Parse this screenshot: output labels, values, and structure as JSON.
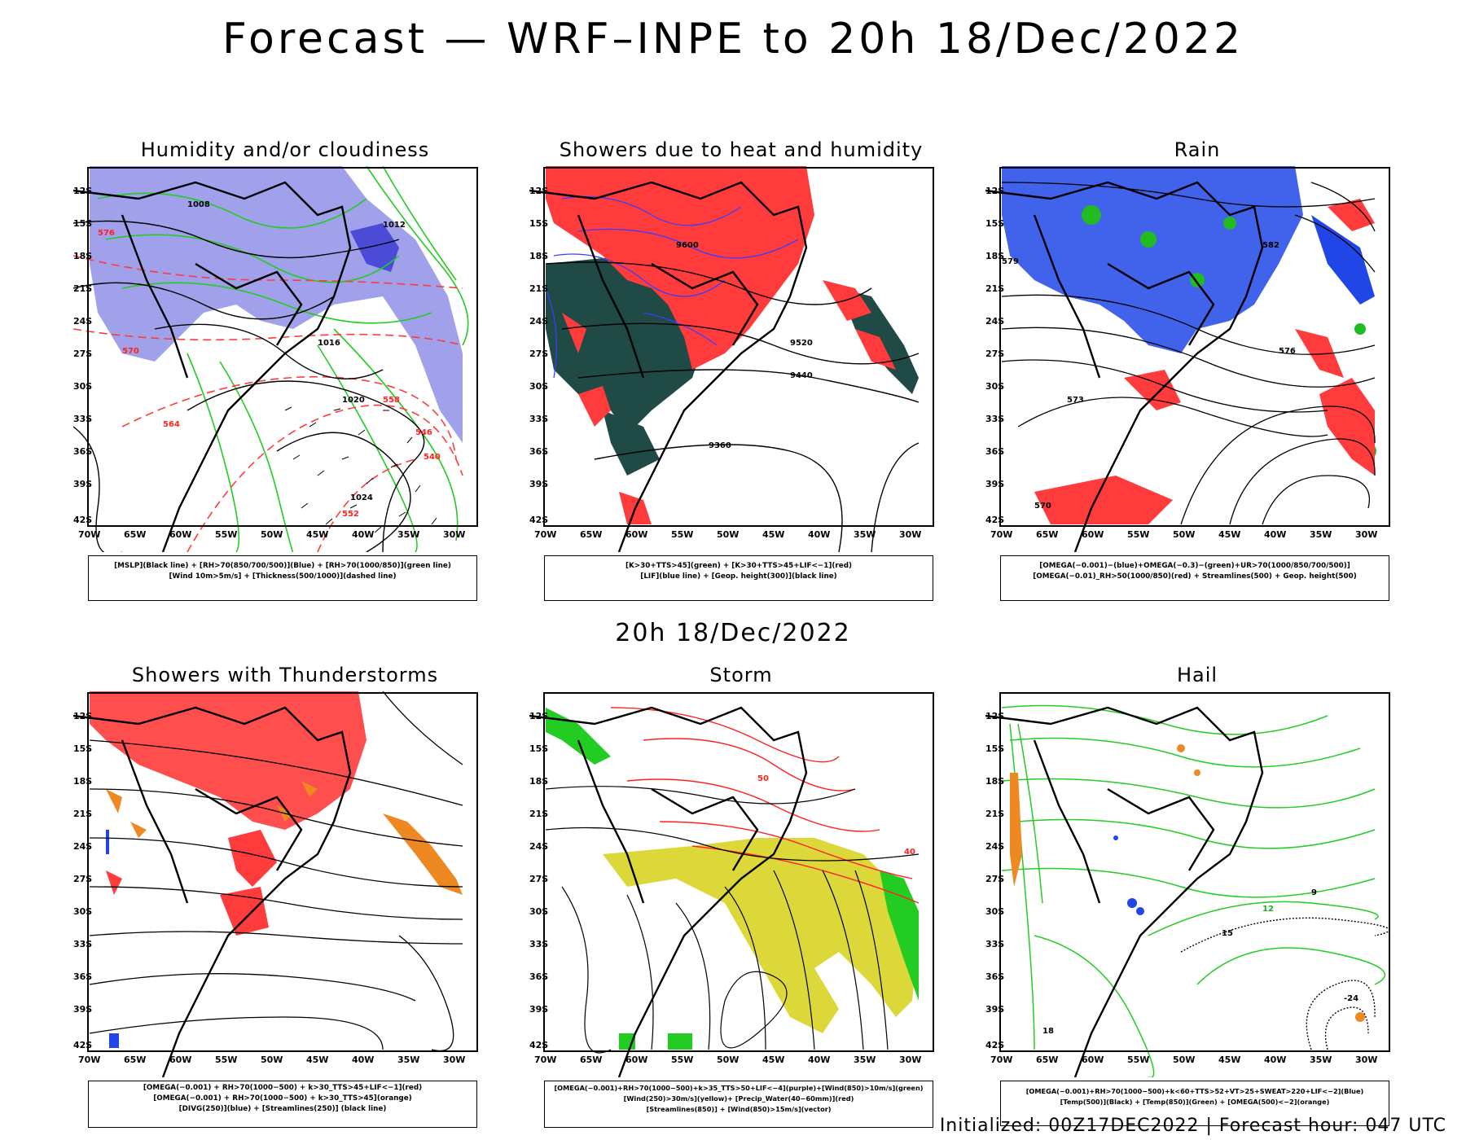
{
  "title": "Forecast — WRF–INPE to 20h 18/Dec/2022",
  "subtitle": "20h 18/Dec/2022",
  "footer": "Initialized: 00Z17DEC2022 | Forecast hour: 047 UTC",
  "axes": {
    "lat_labels": [
      "12S",
      "15S",
      "18S",
      "21S",
      "24S",
      "27S",
      "30S",
      "33S",
      "36S",
      "39S",
      "42S"
    ],
    "lon_labels": [
      "70W",
      "65W",
      "60W",
      "55W",
      "50W",
      "45W",
      "40W",
      "35W",
      "30W"
    ]
  },
  "panels": [
    {
      "title": "Humidity and/or cloudiness",
      "legend": [
        "[MSLP](Black line) + [RH>70(850/700/500)](Blue) + [RH>70(1000/850)](green line)",
        "[Wind 10m>5m/s] + [Thickness(500/1000)](dashed line)"
      ],
      "contour_labels": [
        {
          "text": "1008",
          "color": "#000000"
        },
        {
          "text": "1012",
          "color": "#000000"
        },
        {
          "text": "1016",
          "color": "#000000"
        },
        {
          "text": "1020",
          "color": "#000000"
        },
        {
          "text": "1024",
          "color": "#000000"
        },
        {
          "text": "576",
          "color": "#ff2222"
        },
        {
          "text": "570",
          "color": "#ff2222"
        },
        {
          "text": "564",
          "color": "#ff2222"
        },
        {
          "text": "558",
          "color": "#ff2222"
        },
        {
          "text": "552",
          "color": "#ff2222"
        },
        {
          "text": "546",
          "color": "#ff2222"
        },
        {
          "text": "540",
          "color": "#ff2222"
        }
      ]
    },
    {
      "title": "Showers due to heat and humidity",
      "legend": [
        "[K>30+TTS>45](green) + [K>30+TTS>45+LIF<−1](red)",
        "[LIF](blue line) + [Geop. height(300)](black line)"
      ],
      "contour_labels": [
        {
          "text": "9600",
          "color": "#000000"
        },
        {
          "text": "9520",
          "color": "#000000"
        },
        {
          "text": "9440",
          "color": "#000000"
        },
        {
          "text": "9360",
          "color": "#000000"
        }
      ]
    },
    {
      "title": "Rain",
      "legend": [
        "[OMEGA(−0.001)−(blue)+OMEGA(−0.3)−(green)+UR>70(1000/850/700/500)]",
        "[OMEGA(−0.01)_RH>50(1000/850)(red) + Streamlines(500) + Geop. height(500)"
      ],
      "contour_labels": [
        {
          "text": "582",
          "color": "#000000"
        },
        {
          "text": "579",
          "color": "#000000"
        },
        {
          "text": "576",
          "color": "#000000"
        },
        {
          "text": "573",
          "color": "#000000"
        },
        {
          "text": "570",
          "color": "#000000"
        }
      ]
    },
    {
      "title": "Showers with Thunderstorms",
      "legend": [
        "[OMEGA(−0.001) + RH>70(1000−500) + k>30_TTS>45+LIF<−1](red)",
        "[OMEGA(−0.001) + RH>70(1000−500) + k>30_TTS>45](orange)",
        "[DIVG(250)](blue) + [Streamlines(250)] (black line)"
      ],
      "contour_labels": []
    },
    {
      "title": "Storm",
      "legend": [
        "[OMEGA(−0.001)+RH>70(1000−500)+k>35_TTS>50+LIF<−4](purple)+[Wind(850)>10m/s](green)",
        "[Wind(250)>30m/s](yellow)+ [Precip_Water(40−60mm)](red)",
        "[Streamlines(850)] + [Wind(850)>15m/s](vector)"
      ],
      "contour_labels": [
        {
          "text": "50",
          "color": "#ff2222"
        },
        {
          "text": "40",
          "color": "#ff2222"
        }
      ]
    },
    {
      "title": "Hail",
      "legend": [
        "[OMEGA(−0.001)+RH>70(1000−500)+k<60+TTS>52+VT>25+SWEAT>220+LIF<−2](Blue)",
        "[Temp(500)](Black) + [Temp(850)](Green) + [OMEGA(500)<−2](orange)"
      ],
      "contour_labels": [
        {
          "text": "12",
          "color": "#22aa22"
        },
        {
          "text": "15",
          "color": "#000000"
        },
        {
          "text": "9",
          "color": "#000000"
        },
        {
          "text": "-24",
          "color": "#000000"
        },
        {
          "text": "18",
          "color": "#000000"
        }
      ]
    }
  ],
  "colors": {
    "blue_fill": "#8f8fe8",
    "green_line": "#22cc22",
    "red": "#ff3b3b",
    "dark_teal": "#1f4a46",
    "blue": "#2046e8",
    "orange": "#ee8822",
    "yellow": "#ddd83a",
    "black": "#000000"
  }
}
